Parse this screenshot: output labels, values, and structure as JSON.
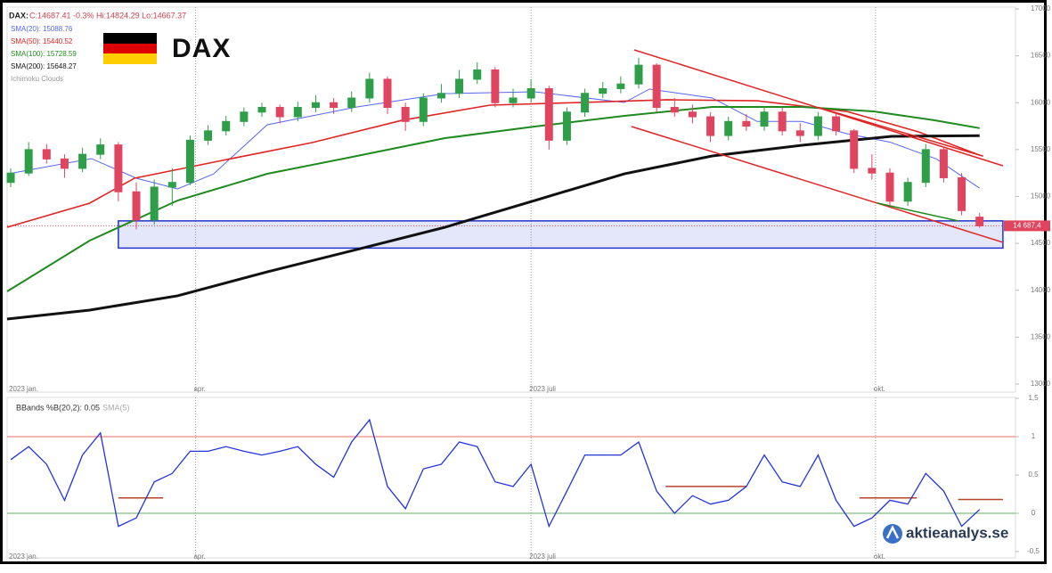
{
  "header": {
    "quote_symbol": "DAX:",
    "quote_text": "C:14687.41 -0.3% Hi:14824.29 Lo:14667.37",
    "extra_legend": "Ichimoku Clouds",
    "logo_title": "DAX",
    "watermark": "aktieanalys.se"
  },
  "chart_data": [
    {
      "type": "candlestick",
      "xlim": [
        -0.2,
        56
      ],
      "x_labels": [
        {
          "value": 0,
          "label": "2023 jan."
        },
        {
          "value": 10.3,
          "label": "apr."
        },
        {
          "value": 29,
          "label": "2023 juli"
        },
        {
          "value": 48.2,
          "label": "okt."
        }
      ],
      "ylim": [
        13000,
        17000
      ],
      "yticks": [
        13000,
        13500,
        14000,
        14500,
        15000,
        15500,
        16000,
        16500,
        17000
      ],
      "up_color": "#2e9e48",
      "down_color": "#e0455f",
      "ohlc": {
        "open": [
          15150,
          15250,
          15500,
          15400,
          15300,
          15450,
          15550,
          15050,
          14750,
          15100,
          15150,
          15600,
          15700,
          15800,
          15900,
          15950,
          15850,
          15950,
          16000,
          15950,
          16050,
          16250,
          15950,
          15800,
          16050,
          16100,
          16250,
          16350,
          16000,
          16050,
          16150,
          15600,
          15900,
          16100,
          16150,
          16200,
          16400,
          15950,
          15900,
          15850,
          15650,
          15800,
          15750,
          15900,
          15700,
          15650,
          15850,
          15700,
          15300,
          15250,
          14950,
          15150,
          15500,
          15200,
          14780
        ],
        "high": [
          15300,
          15580,
          15560,
          15450,
          15520,
          15620,
          15580,
          15150,
          15180,
          15300,
          15650,
          15760,
          15860,
          15950,
          16000,
          15980,
          16010,
          16080,
          16050,
          16120,
          16320,
          16280,
          16000,
          16100,
          16200,
          16350,
          16430,
          16380,
          16150,
          16250,
          16180,
          15950,
          16150,
          16220,
          16280,
          16480,
          16420,
          16050,
          15980,
          15900,
          15850,
          15880,
          15960,
          15950,
          15780,
          15900,
          15880,
          15720,
          15450,
          15300,
          15200,
          15560,
          15520,
          15250,
          14824.29
        ],
        "low": [
          15100,
          15220,
          15350,
          15200,
          15260,
          15400,
          14950,
          14650,
          14700,
          14900,
          15120,
          15550,
          15650,
          15750,
          15850,
          15780,
          15800,
          15900,
          15880,
          15900,
          16000,
          15880,
          15700,
          15750,
          16000,
          16050,
          16200,
          15950,
          15950,
          16000,
          15500,
          15550,
          15850,
          16050,
          16100,
          16150,
          15900,
          15850,
          15780,
          15580,
          15600,
          15700,
          15700,
          15650,
          15580,
          15600,
          15650,
          15250,
          15180,
          14900,
          14900,
          15100,
          15150,
          14800,
          14667.37
        ],
        "close": [
          15250,
          15500,
          15400,
          15300,
          15450,
          15550,
          15050,
          14750,
          15100,
          15150,
          15600,
          15700,
          15800,
          15900,
          15950,
          15850,
          15950,
          16000,
          15950,
          16050,
          16250,
          15950,
          15800,
          16050,
          16100,
          16250,
          16350,
          16000,
          16050,
          16150,
          15600,
          15900,
          16100,
          16150,
          16200,
          16400,
          15950,
          15900,
          15850,
          15650,
          15800,
          15750,
          15900,
          15700,
          15650,
          15850,
          15700,
          15300,
          15250,
          14950,
          15150,
          15500,
          15200,
          14850,
          14687.41
        ]
      },
      "series": [
        {
          "name": "SMA(20): 15088.76",
          "color": "#5566ee",
          "width": 1,
          "x": [
            -0.2,
            4.5,
            7,
            9.3,
            11.3,
            14.3,
            19.3,
            24.2,
            29.2,
            34.2,
            35.6,
            39.1,
            41.6,
            44.1,
            46.6,
            49,
            51.6,
            54
          ],
          "values": [
            15240,
            15404,
            15195,
            15081,
            15240,
            15765,
            15955,
            16097,
            16116,
            16002,
            16145,
            16050,
            15800,
            15800,
            15670,
            15580,
            15400,
            15088.76
          ]
        },
        {
          "name": "SMA(50): 15440.52",
          "color": "#e02424",
          "width": 1.6,
          "x": [
            -0.2,
            4.4,
            6.9,
            11.8,
            16.8,
            21.8,
            26.7,
            31.7,
            36.6,
            41.6,
            46.6,
            50.6,
            54
          ],
          "values": [
            14672,
            14929,
            15195,
            15385,
            15575,
            15812,
            15974,
            16002,
            16031,
            16021,
            15907,
            15689,
            15440.52
          ]
        },
        {
          "name": "SMA(100): 15728.59",
          "color": "#1f8a1f",
          "width": 2,
          "x": [
            -0.2,
            4.4,
            9.3,
            14.3,
            19.3,
            24.2,
            29.2,
            34.2,
            39.1,
            44.1,
            48.1,
            51.5,
            54
          ],
          "values": [
            13988,
            14530,
            14957,
            15242,
            15432,
            15622,
            15746,
            15860,
            15955,
            15955,
            15907,
            15812,
            15728.59
          ]
        },
        {
          "name": "SMA(200): 15648.27",
          "color": "#111111",
          "width": 3,
          "x": [
            -0.2,
            4.4,
            9.3,
            14.3,
            19.3,
            24.2,
            29.2,
            34.2,
            39.1,
            44.1,
            49.1,
            54
          ],
          "values": [
            13694,
            13789,
            13941,
            14197,
            14435,
            14672,
            14957,
            15242,
            15432,
            15546,
            15641,
            15648.27
          ]
        }
      ],
      "trend_lines": [
        {
          "color": "#e02424",
          "x": [
            34.75,
            55.3
          ],
          "y": [
            16563,
            15328
          ]
        },
        {
          "color": "#e02424",
          "x": [
            45,
            54.2
          ],
          "y": [
            15950,
            15430
          ]
        },
        {
          "color": "#e02424",
          "x": [
            34.6,
            55.3
          ],
          "y": [
            15746,
            14511
          ]
        },
        {
          "color": "#1f8a1f",
          "x": [
            48.3,
            52.8
          ],
          "y": [
            14930,
            14740
          ]
        }
      ],
      "support_zone": {
        "x": [
          6,
          55.3
        ],
        "y": [
          14450,
          14740
        ],
        "color": "#2233cc"
      },
      "last_price": {
        "value": 14687.41,
        "label": "14 687,4",
        "color": "#e0455f"
      }
    },
    {
      "type": "line",
      "title": "BBands %B(20,2): 0.05",
      "secondary_legend": "SMA(5)",
      "xlim": [
        -0.2,
        56
      ],
      "ylim": [
        -0.5,
        1.5
      ],
      "yticks": [
        {
          "value": -0.5,
          "label": "-0,5"
        },
        0,
        {
          "value": 0.5,
          "label": "0,5"
        },
        1,
        {
          "value": 1.5,
          "label": "1,5"
        }
      ],
      "color": "#2233dd",
      "values": [
        0.7,
        0.87,
        0.64,
        0.17,
        0.76,
        1.05,
        -0.17,
        -0.06,
        0.41,
        0.52,
        0.81,
        0.81,
        0.87,
        0.81,
        0.76,
        0.81,
        0.87,
        0.64,
        0.47,
        0.93,
        1.22,
        0.35,
        0.06,
        0.58,
        0.64,
        0.93,
        0.87,
        0.41,
        0.35,
        0.64,
        -0.17,
        0.29,
        0.76,
        0.76,
        0.76,
        0.93,
        0.29,
        0.0,
        0.23,
        0.12,
        0.17,
        0.35,
        0.76,
        0.41,
        0.35,
        0.76,
        0.17,
        -0.17,
        -0.06,
        0.17,
        0.12,
        0.52,
        0.29,
        -0.17,
        0.05
      ],
      "ref_lines": [
        {
          "value": 1,
          "color": "#f08a8a"
        },
        {
          "value": 0,
          "color": "#80c080"
        }
      ],
      "level_marks": [
        {
          "x": [
            6,
            8.5
          ],
          "value": 0.2
        },
        {
          "x": [
            36.5,
            41
          ],
          "value": 0.35
        },
        {
          "x": [
            47.3,
            50.5
          ],
          "value": 0.2
        },
        {
          "x": [
            52.8,
            55.3
          ],
          "value": 0.18
        }
      ],
      "level_color": "#b5442a"
    }
  ]
}
